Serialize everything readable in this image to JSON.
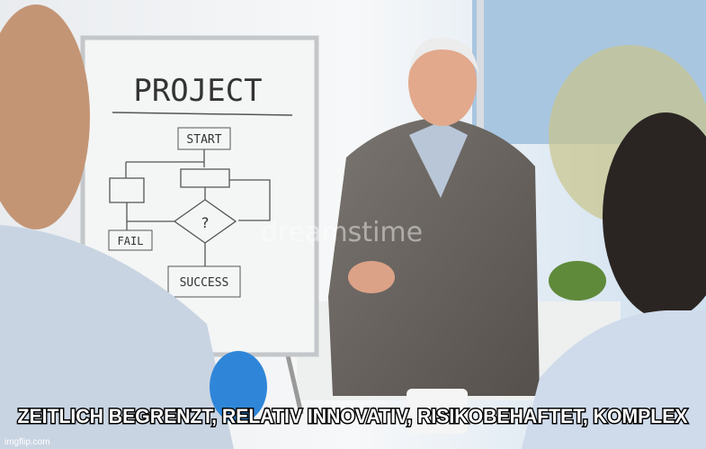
{
  "whiteboard": {
    "title": "PROJECT",
    "start": "START",
    "decision": "?",
    "fail": "FAIL",
    "success": "SUCCESS"
  },
  "watermark": "dreamstime",
  "caption": "ZEITLICH BEGRENZT, RELATIV INNOVATIV, RISIKOBEHAFTET, KOMPLEX",
  "credit": "imgflip.com"
}
